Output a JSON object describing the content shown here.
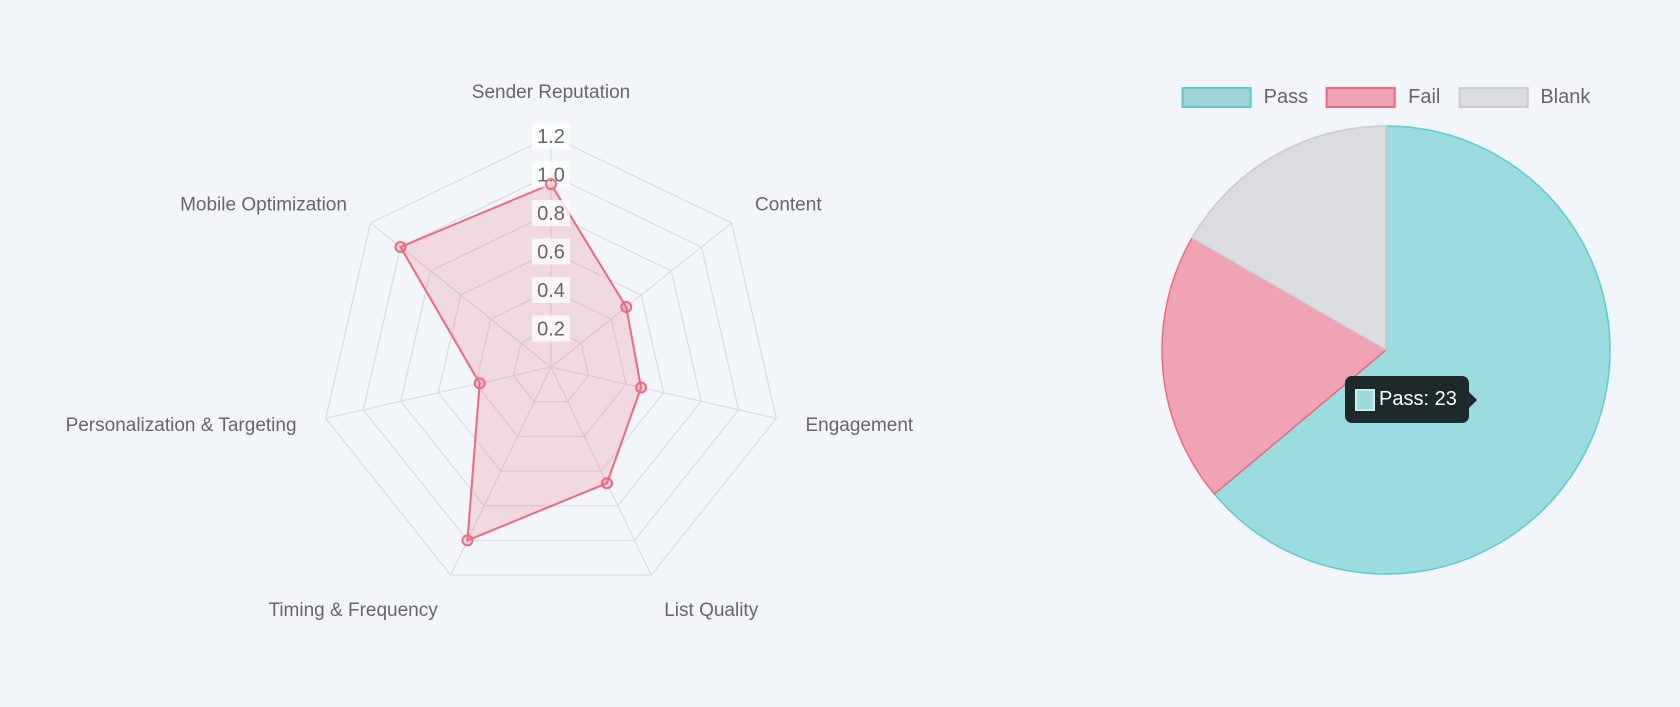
{
  "chart_data": [
    {
      "type": "radar",
      "labels": [
        "Sender Reputation",
        "Content",
        "Engagement",
        "List Quality",
        "Timing & Frequency",
        "Personalization & Targeting",
        "Mobile Optimization"
      ],
      "values": [
        0.95,
        0.5,
        0.48,
        0.67,
        1.0,
        0.38,
        1.0
      ],
      "ticks": [
        "0.2",
        "0.4",
        "0.6",
        "0.8",
        "1.0",
        "1.2"
      ],
      "rlim": [
        0,
        1.2
      ],
      "colors": {
        "line": "#f0677f",
        "fill": "rgba(240,103,127,0.2)",
        "grid": "#d9dce1"
      }
    },
    {
      "type": "pie",
      "labels": [
        "Pass",
        "Fail",
        "Blank"
      ],
      "values": [
        23,
        7,
        6
      ],
      "legend": "top",
      "colors": {
        "Pass": "#9bdce0",
        "Fail": "#f0a3b2",
        "Blank": "#dbdce0"
      },
      "borders": {
        "Pass": "#5ccbcf",
        "Fail": "#f0677f",
        "Blank": "#c9cbcf"
      },
      "tooltip": {
        "label": "Pass: 23"
      }
    }
  ]
}
